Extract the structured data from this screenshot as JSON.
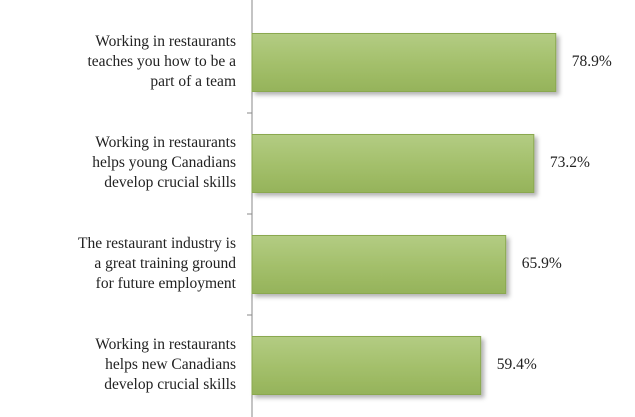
{
  "chart_data": {
    "type": "bar",
    "orientation": "horizontal",
    "categories": [
      [
        "Working in restaurants",
        "teaches you how to be a",
        "part of a team"
      ],
      [
        "Working in restaurants",
        "helps young Canadians",
        "develop crucial skills"
      ],
      [
        "The restaurant industry is",
        "a great training ground",
        "for future employment"
      ],
      [
        "Working in restaurants",
        "helps new Canadians",
        "develop crucial skills"
      ]
    ],
    "values": [
      78.9,
      73.2,
      65.9,
      59.4
    ],
    "value_labels": [
      "78.9%",
      "73.2%",
      "65.9%",
      "59.4%"
    ],
    "color": "#9bbb59",
    "xlim": [
      0,
      100
    ]
  }
}
